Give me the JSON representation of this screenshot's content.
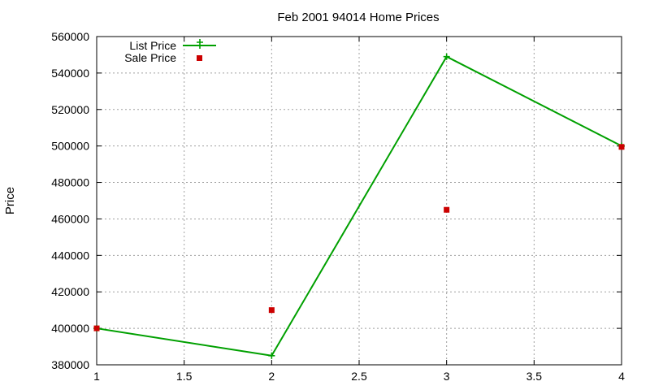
{
  "chart_data": {
    "type": "line",
    "title": "Feb 2001 94014 Home Prices",
    "xlabel": "",
    "ylabel": "Price",
    "xlim": [
      1,
      4
    ],
    "ylim": [
      380000,
      560000
    ],
    "x_ticks": [
      "1",
      "1.5",
      "2",
      "2.5",
      "3",
      "3.5",
      "4"
    ],
    "y_ticks": [
      "380000",
      "400000",
      "420000",
      "440000",
      "460000",
      "480000",
      "500000",
      "520000",
      "540000",
      "560000"
    ],
    "grid": true,
    "legend_position": "top-left",
    "series": [
      {
        "name": "List Price",
        "style": "line-with-points",
        "marker": "plus",
        "color": "#00a000",
        "x": [
          1,
          2,
          3,
          4
        ],
        "y": [
          400000,
          385000,
          549000,
          500000
        ]
      },
      {
        "name": "Sale Price",
        "style": "points",
        "marker": "square",
        "color": "#cc0000",
        "x": [
          1,
          2,
          3,
          4
        ],
        "y": [
          400000,
          410000,
          465000,
          499500
        ]
      }
    ]
  }
}
